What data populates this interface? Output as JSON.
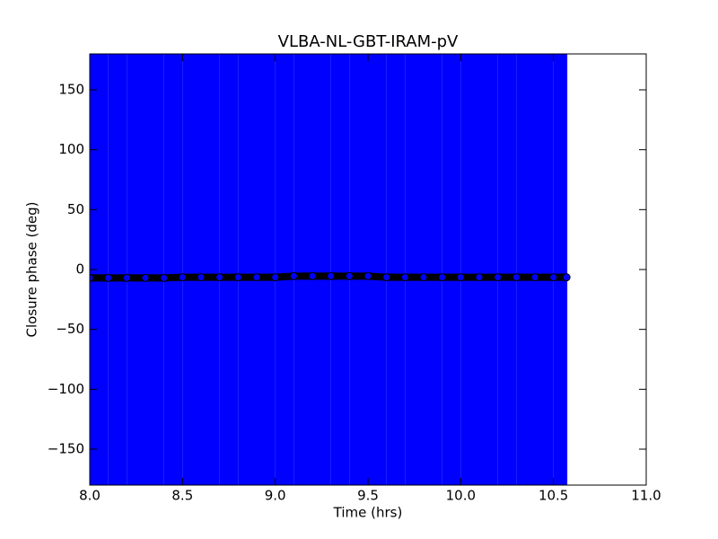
{
  "chart_data": {
    "type": "errorbar",
    "title": "VLBA-NL-GBT-IRAM-pV",
    "xlabel": "Time (hrs)",
    "ylabel": "Closure phase (deg)",
    "x": [
      8.0,
      8.1,
      8.2,
      8.3,
      8.4,
      8.5,
      8.6,
      8.7,
      8.8,
      8.9,
      9.0,
      9.1,
      9.2,
      9.3,
      9.4,
      9.5,
      9.6,
      9.7,
      9.8,
      9.9,
      10.0,
      10.1,
      10.2,
      10.3,
      10.4,
      10.5,
      10.57
    ],
    "values": [
      -7,
      -7,
      -7,
      -7,
      -7,
      -6.5,
      -6.5,
      -6.5,
      -6.5,
      -6.5,
      -6.5,
      -5.5,
      -5.5,
      -5.5,
      -5.5,
      -5.5,
      -6.5,
      -6.5,
      -6.5,
      -6.5,
      -6.5,
      -6.5,
      -6.5,
      -6.5,
      -6.5,
      -6.5,
      -6.5
    ],
    "errors": [
      190,
      190,
      190,
      190,
      190,
      190,
      190,
      190,
      190,
      190,
      190,
      190,
      190,
      190,
      190,
      190,
      190,
      190,
      190,
      190,
      190,
      190,
      190,
      190,
      190,
      190,
      190
    ],
    "color": "#0000ff",
    "line_color": "#000000",
    "xlim": [
      8.0,
      11.0
    ],
    "xticks": [
      {
        "value": 8,
        "label": "8.0"
      },
      {
        "value": 8.5,
        "label": "8.5"
      },
      {
        "value": 9,
        "label": "9.0"
      },
      {
        "value": 9.5,
        "label": "9.5"
      },
      {
        "value": 10,
        "label": "10.0"
      },
      {
        "value": 10.5,
        "label": "10.5"
      },
      {
        "value": 11,
        "label": "11.0"
      }
    ],
    "ylim": [
      -180,
      180
    ],
    "yticks": [
      {
        "value": -150,
        "label": "−150"
      },
      {
        "value": -100,
        "label": "−100"
      },
      {
        "value": -50,
        "label": "−50"
      },
      0,
      50,
      100,
      150
    ]
  }
}
